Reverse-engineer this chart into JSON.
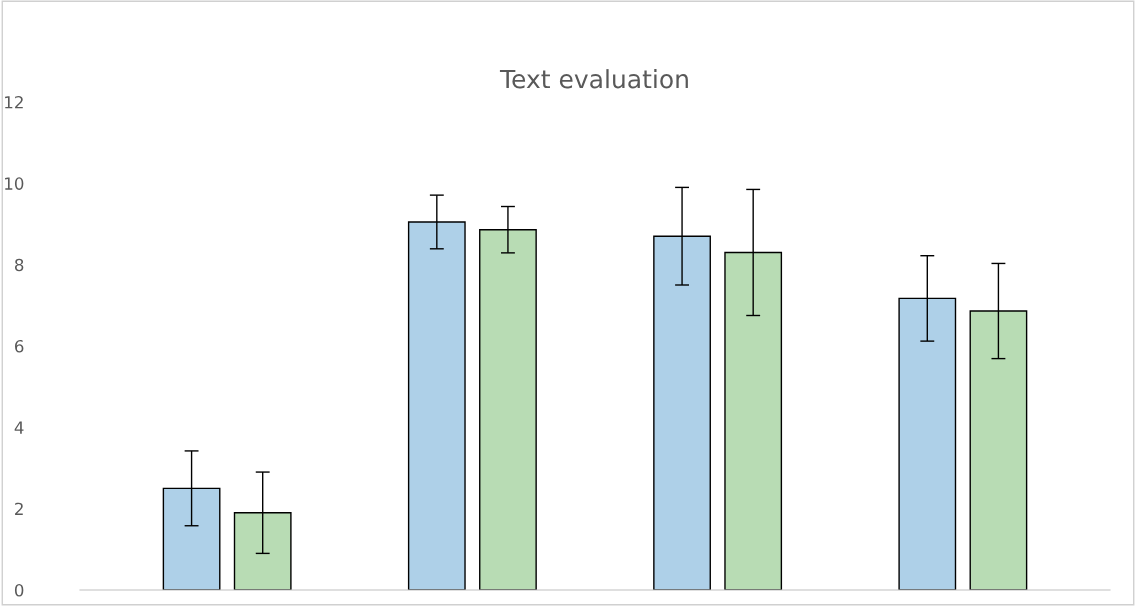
{
  "chart_data": {
    "type": "bar",
    "title": "Text evaluation",
    "categories": [
      null,
      null,
      null,
      null
    ],
    "series": [
      {
        "color": "#aed0e8",
        "values": [
          2.5,
          9.05,
          8.7,
          7.17
        ],
        "errors": [
          0.92,
          0.66,
          1.2,
          1.05
        ]
      },
      {
        "color": "#b8dcb4",
        "values": [
          1.9,
          8.86,
          8.3,
          6.86
        ],
        "errors": [
          1.0,
          0.57,
          1.55,
          1.17
        ]
      }
    ],
    "ylim": [
      0,
      12
    ],
    "yticks": [
      0,
      2,
      4,
      6,
      8,
      10,
      12
    ],
    "grid": false,
    "legend": false
  }
}
